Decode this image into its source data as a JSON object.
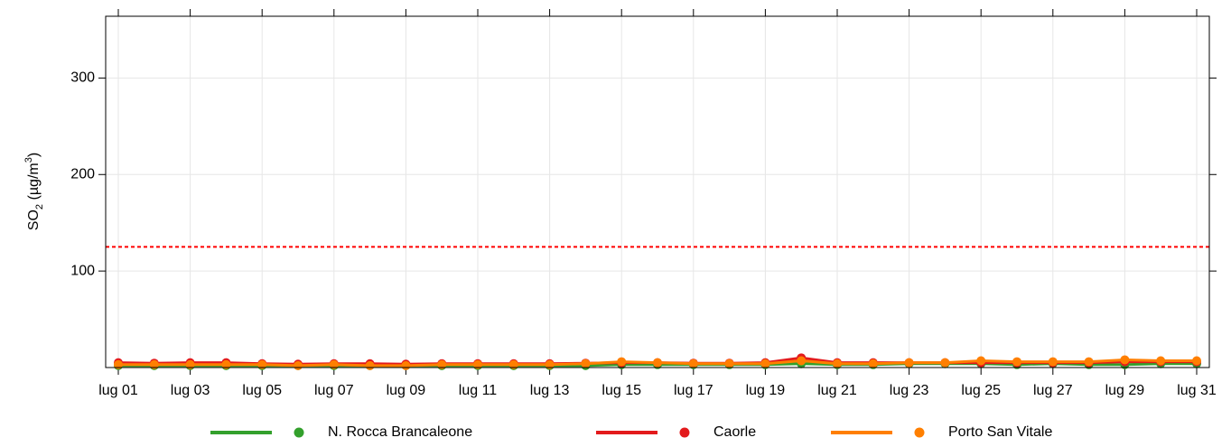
{
  "chart_data": {
    "type": "line",
    "y_label_parts": [
      "SO",
      "2",
      " (µg/m",
      "3",
      ")"
    ],
    "categories": [
      "lug 01",
      null,
      "lug 03",
      null,
      "lug 05",
      null,
      "lug 07",
      null,
      "lug 09",
      null,
      "lug 11",
      null,
      "lug 13",
      null,
      "lug 15",
      null,
      "lug 17",
      null,
      "lug 19",
      null,
      "lug 21",
      null,
      "lug 23",
      null,
      "lug 25",
      null,
      "lug 27",
      null,
      "lug 29",
      null,
      "lug 31"
    ],
    "series": [
      {
        "name": "N. Rocca Brancaleone",
        "color": "#33a02c",
        "values": [
          2,
          2,
          2,
          2,
          2,
          2,
          2,
          2,
          2,
          2,
          2,
          2,
          2,
          2,
          3,
          3,
          3,
          3,
          3,
          4,
          3,
          3,
          4,
          4,
          4,
          3,
          4,
          3,
          3,
          4,
          4
        ]
      },
      {
        "name": "Caorle",
        "color": "#e31a1c",
        "values": [
          5,
          4.5,
          5,
          5,
          4,
          3.5,
          4,
          4,
          3.5,
          4,
          4,
          4,
          4,
          4.5,
          5,
          5,
          4.5,
          4.5,
          5,
          10,
          5,
          5,
          5,
          5,
          5,
          5,
          5,
          5,
          6,
          6,
          6
        ]
      },
      {
        "name": "Porto San Vitale",
        "color": "#ff7f00",
        "values": [
          3,
          3,
          3,
          3,
          3,
          2,
          3,
          2,
          2,
          3,
          3,
          3,
          3,
          4,
          6,
          5,
          4,
          4,
          4,
          7,
          4,
          4,
          5,
          5,
          7,
          6,
          6,
          6,
          8,
          7,
          7
        ]
      }
    ],
    "threshold": {
      "value": 125,
      "color": "#ff0000"
    },
    "ylim": [
      0,
      364
    ],
    "yticks": [
      100,
      200,
      300
    ],
    "grid": true
  }
}
